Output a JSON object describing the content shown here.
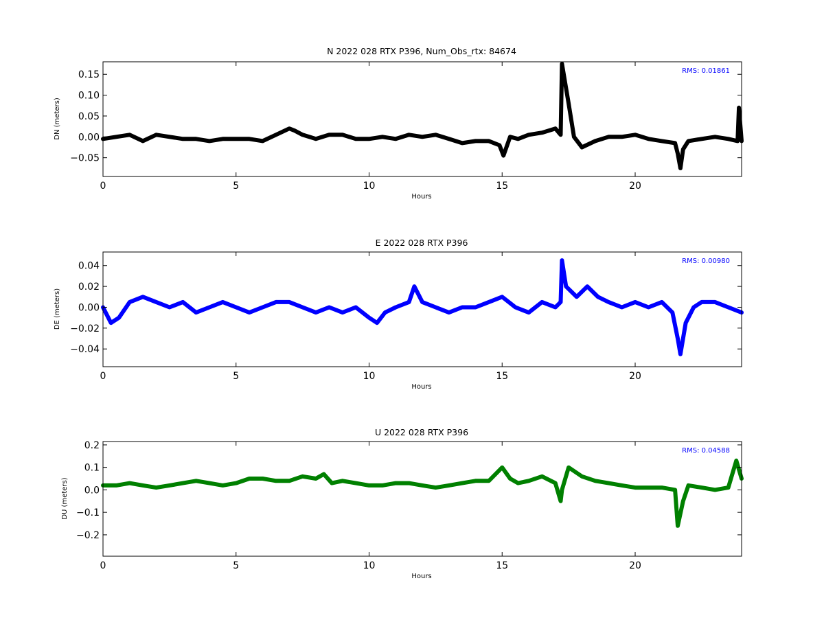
{
  "chart_data": [
    {
      "type": "scatter",
      "title": "N 2022 028 RTX  P396, Num_Obs_rtx: 84674",
      "xlabel": "Hours",
      "ylabel": "DN (meters)",
      "xlim": [
        0,
        24
      ],
      "ylim": [
        -0.095,
        0.18
      ],
      "xticks": [
        0,
        5,
        10,
        15,
        20
      ],
      "xtick_labels": [
        "0",
        "5",
        "10",
        "15",
        "20"
      ],
      "yticks": [
        -0.05,
        0.0,
        0.05,
        0.1,
        0.15
      ],
      "ytick_labels": [
        "−0.05",
        "0.00",
        "0.05",
        "0.10",
        "0.15"
      ],
      "annotation": "RMS:  0.01861",
      "color": "#000000",
      "annotation_color": "#0000ff",
      "grid": false,
      "series": [
        {
          "x": [
            0,
            0.5,
            1,
            1.5,
            2,
            2.5,
            3,
            3.5,
            4,
            4.5,
            5,
            5.5,
            6,
            6.5,
            7,
            7.2,
            7.5,
            8,
            8.5,
            9,
            9.5,
            10,
            10.5,
            11,
            11.5,
            12,
            12.5,
            13,
            13.5,
            14,
            14.5,
            14.9,
            15.05,
            15.3,
            15.6,
            16,
            16.5,
            17,
            17.2,
            17.25,
            17.5,
            17.7,
            18,
            18.5,
            19,
            19.5,
            20,
            20.5,
            21,
            21.5,
            21.6,
            21.7,
            21.8,
            22,
            22.5,
            23,
            23.5,
            23.85,
            23.9,
            24
          ],
          "y": [
            -0.005,
            0,
            0.005,
            -0.01,
            0.005,
            0,
            -0.005,
            -0.005,
            -0.01,
            -0.005,
            -0.005,
            -0.005,
            -0.01,
            0.005,
            0.02,
            0.015,
            0.005,
            -0.005,
            0.005,
            0.005,
            -0.005,
            -0.005,
            0,
            -0.005,
            0.005,
            0,
            0.005,
            -0.005,
            -0.015,
            -0.01,
            -0.01,
            -0.02,
            -0.045,
            0,
            -0.005,
            0.005,
            0.01,
            0.02,
            0.005,
            0.175,
            0.08,
            0,
            -0.025,
            -0.01,
            0,
            0,
            0.005,
            -0.005,
            -0.01,
            -0.015,
            -0.04,
            -0.075,
            -0.03,
            -0.01,
            -0.005,
            0,
            -0.005,
            -0.01,
            0.07,
            -0.01
          ]
        }
      ]
    },
    {
      "type": "scatter",
      "title": "E 2022 028 RTX  P396",
      "xlabel": "Hours",
      "ylabel": "DE (meters)",
      "xlim": [
        0,
        24
      ],
      "ylim": [
        -0.057,
        0.053
      ],
      "xticks": [
        0,
        5,
        10,
        15,
        20
      ],
      "xtick_labels": [
        "0",
        "5",
        "10",
        "15",
        "20"
      ],
      "yticks": [
        -0.04,
        -0.02,
        0.0,
        0.02,
        0.04
      ],
      "ytick_labels": [
        "−0.04",
        "−0.02",
        "0.00",
        "0.02",
        "0.04"
      ],
      "annotation": "RMS:  0.00980",
      "color": "#0000ff",
      "annotation_color": "#0000ff",
      "grid": false,
      "series": [
        {
          "x": [
            0,
            0.3,
            0.6,
            1,
            1.5,
            2,
            2.5,
            3,
            3.5,
            4,
            4.5,
            5,
            5.5,
            6,
            6.5,
            7,
            7.5,
            8,
            8.5,
            9,
            9.5,
            10,
            10.3,
            10.6,
            11,
            11.5,
            11.7,
            12,
            12.5,
            13,
            13.5,
            14,
            14.5,
            15,
            15.5,
            16,
            16.5,
            17,
            17.2,
            17.25,
            17.4,
            17.8,
            18.2,
            18.6,
            19,
            19.5,
            20,
            20.5,
            21,
            21.4,
            21.6,
            21.7,
            21.9,
            22.2,
            22.5,
            23,
            23.5,
            24
          ],
          "y": [
            0,
            -0.015,
            -0.01,
            0.005,
            0.01,
            0.005,
            0,
            0.005,
            -0.005,
            0,
            0.005,
            0,
            -0.005,
            0,
            0.005,
            0.005,
            0,
            -0.005,
            0,
            -0.005,
            0,
            -0.01,
            -0.015,
            -0.005,
            0,
            0.005,
            0.02,
            0.005,
            0,
            -0.005,
            0,
            0,
            0.005,
            0.01,
            0,
            -0.005,
            0.005,
            0,
            0.005,
            0.045,
            0.02,
            0.01,
            0.02,
            0.01,
            0.005,
            0,
            0.005,
            0,
            0.005,
            -0.005,
            -0.03,
            -0.045,
            -0.015,
            0,
            0.005,
            0.005,
            0,
            -0.005
          ]
        }
      ]
    },
    {
      "type": "scatter",
      "title": "U 2022 028 RTX  P396",
      "xlabel": "Hours",
      "ylabel": "DU (meters)",
      "xlim": [
        0,
        24
      ],
      "ylim": [
        -0.295,
        0.215
      ],
      "xticks": [
        0,
        5,
        10,
        15,
        20
      ],
      "xtick_labels": [
        "0",
        "5",
        "10",
        "15",
        "20"
      ],
      "yticks": [
        -0.2,
        -0.1,
        0.0,
        0.1,
        0.2
      ],
      "ytick_labels": [
        "−0.2",
        "−0.1",
        "0.0",
        "0.1",
        "0.2"
      ],
      "annotation": "RMS:  0.04588",
      "color": "#008000",
      "annotation_color": "#0000ff",
      "grid": false,
      "series": [
        {
          "x": [
            0,
            0.5,
            1,
            1.5,
            2,
            2.5,
            3,
            3.5,
            4,
            4.5,
            5,
            5.5,
            6,
            6.5,
            7,
            7.5,
            8,
            8.3,
            8.6,
            9,
            9.5,
            10,
            10.5,
            11,
            11.5,
            12,
            12.5,
            13,
            13.5,
            14,
            14.5,
            15,
            15.3,
            15.6,
            16,
            16.5,
            17,
            17.2,
            17.25,
            17.5,
            18,
            18.5,
            19,
            19.5,
            20,
            20.5,
            21,
            21.5,
            21.6,
            21.8,
            22,
            22.5,
            23,
            23.5,
            23.8,
            24
          ],
          "y": [
            0.02,
            0.02,
            0.03,
            0.02,
            0.01,
            0.02,
            0.03,
            0.04,
            0.03,
            0.02,
            0.03,
            0.05,
            0.05,
            0.04,
            0.04,
            0.06,
            0.05,
            0.07,
            0.03,
            0.04,
            0.03,
            0.02,
            0.02,
            0.03,
            0.03,
            0.02,
            0.01,
            0.02,
            0.03,
            0.04,
            0.04,
            0.1,
            0.05,
            0.03,
            0.04,
            0.06,
            0.03,
            -0.05,
            0.0,
            0.1,
            0.06,
            0.04,
            0.03,
            0.02,
            0.01,
            0.01,
            0.01,
            0.0,
            -0.16,
            -0.05,
            0.02,
            0.01,
            0.0,
            0.01,
            0.13,
            0.05
          ]
        }
      ]
    }
  ]
}
